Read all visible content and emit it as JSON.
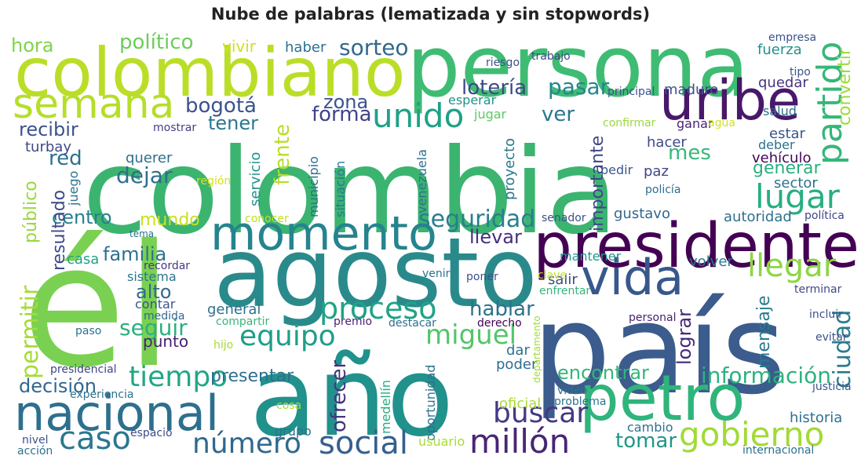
{
  "chart_data": {
    "type": "wordcloud",
    "title": "Nube de palabras (lematizada y sin stopwords)",
    "words": [
      {
        "text": "colombia",
        "color": "#3bb470"
      },
      {
        "text": "él",
        "color": "#7ad151"
      },
      {
        "text": "país",
        "color": "#3b5c8c"
      },
      {
        "text": "año",
        "color": "#21918c"
      },
      {
        "text": "agosto",
        "color": "#2a8a8b"
      },
      {
        "text": "persona",
        "color": "#3fbc73"
      },
      {
        "text": "colombiano",
        "color": "#bade28"
      },
      {
        "text": "presidente",
        "color": "#440154"
      },
      {
        "text": "petro",
        "color": "#2fb47c"
      },
      {
        "text": "nacional",
        "color": "#2d708e"
      },
      {
        "text": "momento",
        "color": "#25848e"
      },
      {
        "text": "uribe",
        "color": "#48186a"
      },
      {
        "text": "semana",
        "color": "#b5de2b"
      },
      {
        "text": "vida",
        "color": "#38588c"
      },
      {
        "text": "gobierno",
        "color": "#a2da37"
      },
      {
        "text": "millón",
        "color": "#482576"
      },
      {
        "text": "partido",
        "color": "#35b779"
      },
      {
        "text": "lugar",
        "color": "#28ae80"
      },
      {
        "text": "llegar",
        "color": "#8ed645"
      },
      {
        "text": "unido",
        "color": "#1fa187"
      },
      {
        "text": "proceso",
        "color": "#20a386"
      },
      {
        "text": "equipo",
        "color": "#1f9e89"
      },
      {
        "text": "caso",
        "color": "#2a788e"
      },
      {
        "text": "social",
        "color": "#355f8d"
      },
      {
        "text": "número",
        "color": "#30688e"
      },
      {
        "text": "buscar",
        "color": "#443983"
      },
      {
        "text": "tiempo",
        "color": "#22a785"
      },
      {
        "text": "miguel",
        "color": "#52c569"
      },
      {
        "text": "seguridad",
        "color": "#277f8e"
      },
      {
        "text": "ciudad",
        "color": "#287c8e"
      },
      {
        "text": "información",
        "color": "#2db27d"
      },
      {
        "text": "permitir",
        "color": "#a5db36"
      },
      {
        "text": "hablar",
        "color": "#2c728e"
      },
      {
        "text": "lotería",
        "color": "#3e4989"
      },
      {
        "text": "sorteo",
        "color": "#31688e"
      },
      {
        "text": "bogotá",
        "color": "#3b528b"
      },
      {
        "text": "pasar",
        "color": "#25858e"
      },
      {
        "text": "forma",
        "color": "#414487"
      },
      {
        "text": "ver",
        "color": "#2a768e"
      },
      {
        "text": "decisión",
        "color": "#31678e"
      },
      {
        "text": "familia",
        "color": "#2c718e"
      },
      {
        "text": "seguir",
        "color": "#2ab07f"
      },
      {
        "text": "encontrar",
        "color": "#32b67a"
      },
      {
        "text": "ofrecer",
        "color": "#46337e"
      },
      {
        "text": "tomar",
        "color": "#1f968b"
      },
      {
        "text": "mensaje",
        "color": "#297a8e"
      },
      {
        "text": "lograr",
        "color": "#482878"
      },
      {
        "text": "importante",
        "color": "#404688"
      },
      {
        "text": "frente",
        "color": "#b8de29"
      },
      {
        "text": "dejar",
        "color": "#2e6e8e"
      },
      {
        "text": "red",
        "color": "#2c728e"
      },
      {
        "text": "zona",
        "color": "#3b528b"
      },
      {
        "text": "político",
        "color": "#6ccd5a"
      },
      {
        "text": "convertir",
        "color": "#a0da39"
      },
      {
        "text": "generar",
        "color": "#2ab07f"
      },
      {
        "text": "mes",
        "color": "#37b878"
      },
      {
        "text": "centro",
        "color": "#27808e"
      },
      {
        "text": "mundo",
        "color": "#c8e020"
      },
      {
        "text": "alto",
        "color": "#306a8e"
      },
      {
        "text": "tener",
        "color": "#2a788e"
      },
      {
        "text": "recibir",
        "color": "#3b528b"
      },
      {
        "text": "llevar",
        "color": "#46307e"
      },
      {
        "text": "resultado",
        "color": "#3e4a89"
      },
      {
        "text": "público",
        "color": "#99d83d"
      },
      {
        "text": "hora",
        "color": "#7fd34e"
      },
      {
        "text": "presentar",
        "color": "#2e6f8e"
      },
      {
        "text": "punto",
        "color": "#482173"
      },
      {
        "text": "vivir",
        "color": "#cfe11c"
      },
      {
        "text": "haber",
        "color": "#2d718e"
      },
      {
        "text": "fuerza",
        "color": "#21918c"
      },
      {
        "text": "quedar",
        "color": "#453581"
      },
      {
        "text": "salud",
        "color": "#2d708e"
      },
      {
        "text": "estar",
        "color": "#39568c"
      },
      {
        "text": "deber",
        "color": "#2c728e"
      },
      {
        "text": "vehículo",
        "color": "#450559"
      },
      {
        "text": "sector",
        "color": "#2c728e"
      },
      {
        "text": "gustavo",
        "color": "#31688e"
      },
      {
        "text": "autoridad",
        "color": "#2d708e"
      },
      {
        "text": "mantener",
        "color": "#1f988b"
      },
      {
        "text": "volver",
        "color": "#2a788e"
      },
      {
        "text": "salir",
        "color": "#3e4a89"
      },
      {
        "text": "general",
        "color": "#2d718e"
      },
      {
        "text": "sistema",
        "color": "#2a768e"
      },
      {
        "text": "contar",
        "color": "#3b528b"
      },
      {
        "text": "casa",
        "color": "#20a386"
      },
      {
        "text": "querer",
        "color": "#2e6e8e"
      },
      {
        "text": "turbay",
        "color": "#3f4788"
      },
      {
        "text": "juego",
        "color": "#2c738e"
      },
      {
        "text": "servicio",
        "color": "#21918c"
      },
      {
        "text": "municipio",
        "color": "#2d708e"
      },
      {
        "text": "situación",
        "color": "#2a788e"
      },
      {
        "text": "venezuela",
        "color": "#2d718e"
      },
      {
        "text": "proyecto",
        "color": "#2a788e"
      },
      {
        "text": "maduro",
        "color": "#3b528b"
      },
      {
        "text": "hacer",
        "color": "#3e4a89"
      },
      {
        "text": "ganar",
        "color": "#482475"
      },
      {
        "text": "paz",
        "color": "#3f4788"
      },
      {
        "text": "pedir",
        "color": "#39568c"
      },
      {
        "text": "policía",
        "color": "#2e6e8e"
      },
      {
        "text": "jugar",
        "color": "#5ec962"
      },
      {
        "text": "esperar",
        "color": "#21918c"
      },
      {
        "text": "mostrar",
        "color": "#433e85"
      },
      {
        "text": "principal",
        "color": "#3b528b"
      },
      {
        "text": "confirmar",
        "color": "#9bd93c"
      },
      {
        "text": "agua",
        "color": "#d2e21b"
      },
      {
        "text": "trabajo",
        "color": "#404688"
      },
      {
        "text": "riesgo",
        "color": "#3b528b"
      },
      {
        "text": "empresa",
        "color": "#3b528b"
      },
      {
        "text": "tipo",
        "color": "#3b528b"
      },
      {
        "text": "región",
        "color": "#d8e219"
      },
      {
        "text": "conocer",
        "color": "#c2df23"
      },
      {
        "text": "tema",
        "color": "#2c738e"
      },
      {
        "text": "recordar",
        "color": "#453882"
      },
      {
        "text": "medida",
        "color": "#31688e"
      },
      {
        "text": "compartir",
        "color": "#35b779"
      },
      {
        "text": "paso",
        "color": "#2d708e"
      },
      {
        "text": "hijo",
        "color": "#a8db34"
      },
      {
        "text": "premio",
        "color": "#481f70"
      },
      {
        "text": "destacar",
        "color": "#2c728e"
      },
      {
        "text": "derecho",
        "color": "#440154"
      },
      {
        "text": "venir",
        "color": "#2c728e"
      },
      {
        "text": "poner",
        "color": "#3b528b"
      },
      {
        "text": "clave",
        "color": "#c0df25"
      },
      {
        "text": "enfrentar",
        "color": "#35b779"
      },
      {
        "text": "senador",
        "color": "#3b528b"
      },
      {
        "text": "política",
        "color": "#404688"
      },
      {
        "text": "terminar",
        "color": "#3e4989"
      },
      {
        "text": "personal",
        "color": "#482173"
      },
      {
        "text": "incluir",
        "color": "#3b528b"
      },
      {
        "text": "evitar",
        "color": "#3b528b"
      },
      {
        "text": "justicia",
        "color": "#39568c"
      },
      {
        "text": "historia",
        "color": "#2c728e"
      },
      {
        "text": "presidencial",
        "color": "#3f4788"
      },
      {
        "text": "experiencia",
        "color": "#2c728e"
      },
      {
        "text": "oportunidad",
        "color": "#2c728e"
      },
      {
        "text": "medellín",
        "color": "#27ad81"
      },
      {
        "text": "dar",
        "color": "#2c728e"
      },
      {
        "text": "poder",
        "color": "#2e6e8e"
      },
      {
        "text": "departamento",
        "color": "#9fda3a"
      },
      {
        "text": "video",
        "color": "#2c728e"
      },
      {
        "text": "oficial",
        "color": "#aadc32"
      },
      {
        "text": "problema",
        "color": "#2c728e"
      },
      {
        "text": "cambio",
        "color": "#2c728e"
      },
      {
        "text": "usuario",
        "color": "#aadc32"
      },
      {
        "text": "grupo",
        "color": "#2c728e"
      },
      {
        "text": "cosa",
        "color": "#a8db34"
      },
      {
        "text": "espacio",
        "color": "#3e4a89"
      },
      {
        "text": "nivel",
        "color": "#3b528b"
      },
      {
        "text": "acción",
        "color": "#2c728e"
      },
      {
        "text": "internacional",
        "color": "#2c728e"
      }
    ]
  }
}
